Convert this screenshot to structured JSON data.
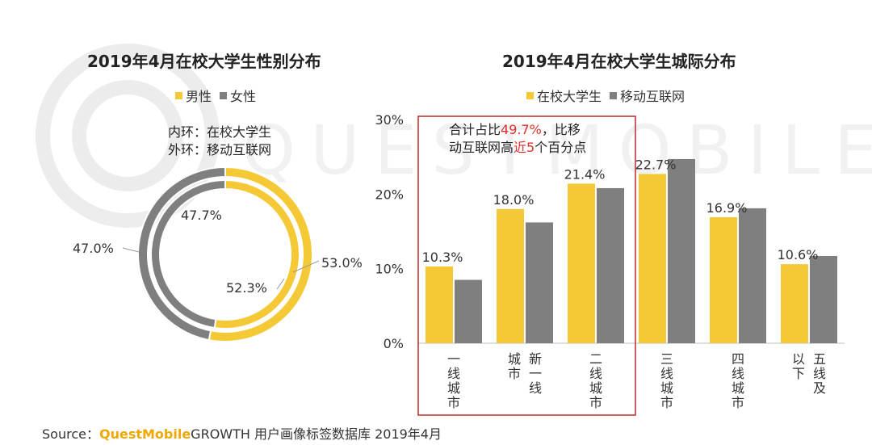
{
  "colors": {
    "male_or_campus": "#f4c935",
    "female_or_mobile": "#7f7f7f",
    "highlight_red": "#d9302a",
    "brand": "#f0a800"
  },
  "watermark": {
    "text": "QUESTMOBILE"
  },
  "donut": {
    "title": "2019年4月在校大学生性别分布",
    "legend": [
      {
        "label": "男性",
        "color": "#f4c935"
      },
      {
        "label": "女性",
        "color": "#7f7f7f"
      }
    ],
    "note_line1": "内环：在校大学生",
    "note_line2": "外环：移动互联网",
    "outer_ring": {
      "series": "移动互联网",
      "male": 53.0,
      "female": 47.0,
      "male_label": "53.0%",
      "female_label": "47.0%"
    },
    "inner_ring": {
      "series": "在校大学生",
      "male": 52.3,
      "female": 47.7,
      "male_label": "52.3%",
      "female_label": "47.7%"
    }
  },
  "chart_data": {
    "type": "bar",
    "title": "2019年4月在校大学生城际分布",
    "categories": [
      "一线城市",
      "新一线城市",
      "二线城市",
      "三线城市",
      "四线城市",
      "五线及以下"
    ],
    "category_labels": [
      [
        "一线城市"
      ],
      [
        "城市",
        "新一线"
      ],
      [
        "二线城市"
      ],
      [
        "三线城市"
      ],
      [
        "四线城市"
      ],
      [
        "以下",
        "五线及"
      ]
    ],
    "series": [
      {
        "name": "在校大学生",
        "values": [
          10.3,
          18.0,
          21.4,
          22.7,
          16.9,
          10.6
        ],
        "labels": [
          "10.3%",
          "18.0%",
          "21.4%",
          "22.7%",
          "16.9%",
          "10.6%"
        ]
      },
      {
        "name": "移动互联网",
        "values": [
          8.5,
          16.2,
          20.8,
          24.7,
          18.1,
          11.7
        ]
      }
    ],
    "yticks": [
      "0%",
      "10%",
      "20%",
      "30%"
    ],
    "ylim": [
      0,
      30
    ],
    "unit": "%",
    "annotation": {
      "pre": "合计占比",
      "value": "49.7%",
      "mid": "，比移",
      "line2_pre": "动互联网高",
      "near": "近",
      "five": "5",
      "post": "个百分点"
    }
  },
  "source": {
    "prefix": "Source：",
    "brand": "QuestMobile",
    "suffix": "GROWTH 用户画像标签数据库  2019年4月"
  }
}
